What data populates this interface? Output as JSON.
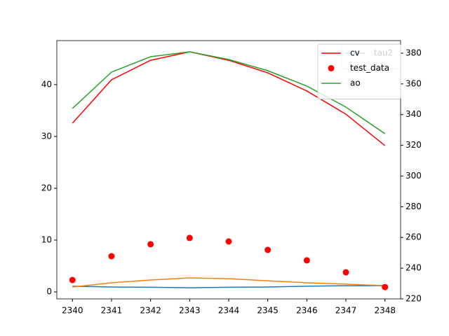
{
  "chart_data": {
    "type": "line",
    "x": [
      2340,
      2341,
      2342,
      2343,
      2344,
      2345,
      2346,
      2347,
      2348
    ],
    "xlim": [
      2339.6,
      2348.4
    ],
    "xticks": [
      2340,
      2341,
      2342,
      2343,
      2344,
      2345,
      2346,
      2347,
      2348
    ],
    "ylim": [
      -1.35,
      48.5
    ],
    "yticks": [
      0,
      10,
      20,
      30,
      40
    ],
    "y2lim": [
      220,
      388.2
    ],
    "y2ticks": [
      220,
      240,
      260,
      280,
      300,
      320,
      340,
      360,
      380
    ],
    "series": [
      {
        "name": "tau2",
        "color": "#1f77b4",
        "kind": "line",
        "axis": "y",
        "values": [
          1.1,
          0.95,
          0.9,
          0.8,
          0.9,
          0.95,
          1.1,
          1.2,
          1.2
        ]
      },
      {
        "color": "#ff7f0e",
        "kind": "line",
        "axis": "y",
        "values": [
          0.95,
          1.75,
          2.3,
          2.7,
          2.55,
          2.15,
          1.75,
          1.5,
          1.2
        ]
      },
      {
        "name": "cv",
        "color": "#ff0000",
        "kind": "line",
        "axis": "y2",
        "values": [
          334.4,
          362.7,
          375.4,
          380.9,
          375.4,
          367.2,
          355.4,
          340.3,
          319.8
        ]
      },
      {
        "name": "test_data",
        "color": "#ff0000",
        "kind": "scatter",
        "axis": "y2",
        "values": [
          232.3,
          247.8,
          255.6,
          259.7,
          257.4,
          251.9,
          245.1,
          237.3,
          227.7
        ]
      },
      {
        "name": "ao",
        "color": "#2ca02c",
        "kind": "line",
        "axis": "y2",
        "values": [
          344.0,
          367.7,
          377.7,
          380.9,
          375.9,
          368.6,
          358.6,
          344.9,
          327.6
        ]
      }
    ]
  }
}
